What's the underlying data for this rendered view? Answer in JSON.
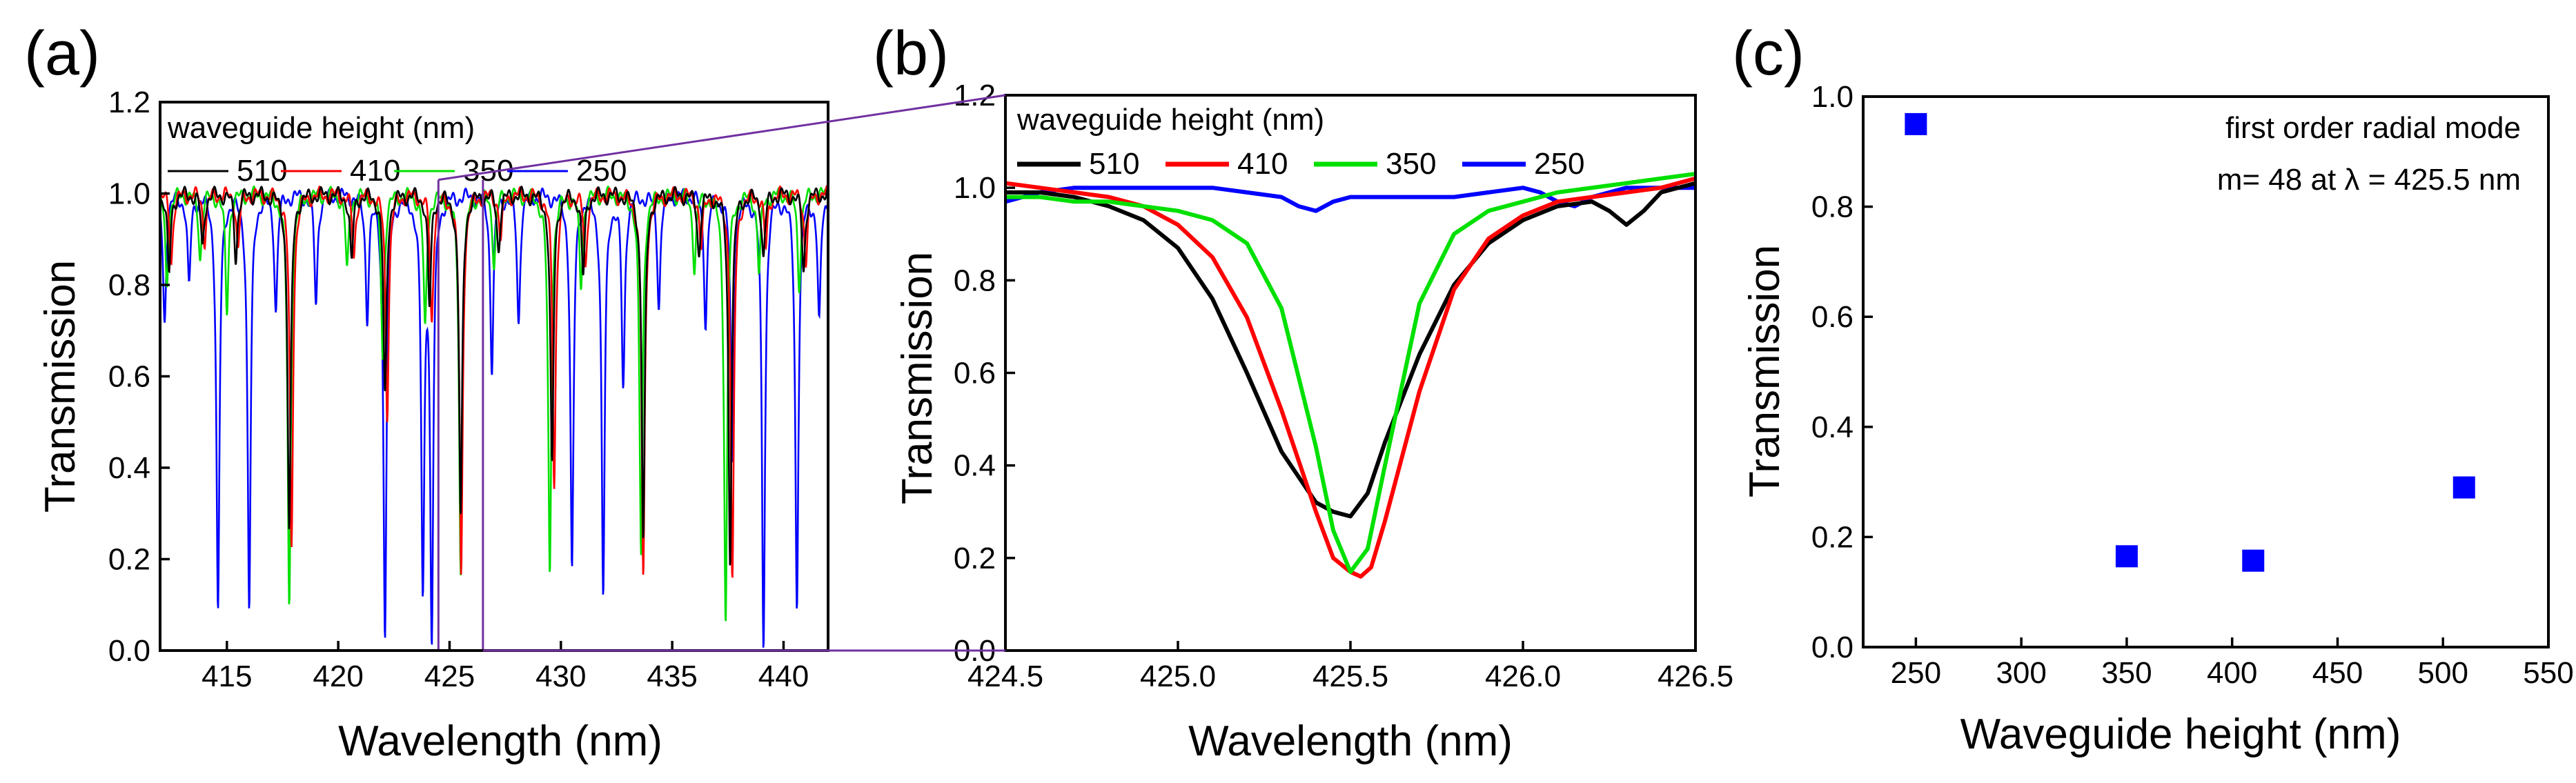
{
  "colors": {
    "510": "#000000",
    "410": "#ff0000",
    "350": "#00e000",
    "250": "#0000ff",
    "connector": "#7030a0",
    "marker": "#0000ff"
  },
  "chart_data": [
    {
      "panel_label": "(a)",
      "type": "line",
      "xlabel": "Wavelength (nm)",
      "ylabel": "Transmission",
      "xlim": [
        412,
        442
      ],
      "ylim": [
        0,
        1.2
      ],
      "xticks": [
        "415",
        "420",
        "425",
        "430",
        "435",
        "440"
      ],
      "yticks": [
        "0.0",
        "0.2",
        "0.4",
        "0.6",
        "0.8",
        "1.0",
        "1.2"
      ],
      "legend_title": "waveguide height (nm)",
      "legend_placement": "top-left",
      "zoom_window": [
        424.5,
        426.5
      ],
      "series": [
        {
          "name": "510",
          "baseline": 1.0,
          "dips": [
            [
              412.4,
              0.82
            ],
            [
              413.9,
              0.88
            ],
            [
              415.4,
              0.86
            ],
            [
              417.8,
              0.26
            ],
            [
              420.6,
              0.85
            ],
            [
              422.1,
              0.55
            ],
            [
              424.1,
              0.75
            ],
            [
              425.5,
              0.29
            ],
            [
              427.2,
              0.88
            ],
            [
              429.6,
              0.4
            ],
            [
              431.0,
              0.82
            ],
            [
              433.7,
              0.24
            ],
            [
              436.2,
              0.87
            ],
            [
              437.6,
              0.2
            ],
            [
              439.1,
              0.86
            ],
            [
              440.9,
              0.83
            ]
          ]
        },
        {
          "name": "410",
          "baseline": 1.0,
          "dips": [
            [
              412.5,
              0.85
            ],
            [
              414.0,
              0.9
            ],
            [
              415.5,
              0.88
            ],
            [
              417.9,
              0.22
            ],
            [
              420.7,
              0.86
            ],
            [
              422.2,
              0.52
            ],
            [
              424.2,
              0.72
            ],
            [
              425.52,
              0.16
            ],
            [
              427.3,
              0.9
            ],
            [
              429.7,
              0.36
            ],
            [
              431.1,
              0.84
            ],
            [
              433.7,
              0.15
            ],
            [
              436.3,
              0.88
            ],
            [
              437.7,
              0.14
            ],
            [
              439.2,
              0.88
            ],
            [
              441.0,
              0.85
            ]
          ]
        },
        {
          "name": "350",
          "baseline": 1.0,
          "dips": [
            [
              412.3,
              0.8
            ],
            [
              413.8,
              0.86
            ],
            [
              415.0,
              0.74
            ],
            [
              417.8,
              0.09
            ],
            [
              420.4,
              0.83
            ],
            [
              422.0,
              0.64
            ],
            [
              423.9,
              0.7
            ],
            [
              425.5,
              0.17
            ],
            [
              427.0,
              0.85
            ],
            [
              429.5,
              0.16
            ],
            [
              430.9,
              0.8
            ],
            [
              433.6,
              0.21
            ],
            [
              436.0,
              0.84
            ],
            [
              437.4,
              0.06
            ],
            [
              438.9,
              0.83
            ],
            [
              440.7,
              0.8
            ]
          ]
        },
        {
          "name": "250",
          "baseline": 1.0,
          "dips": [
            [
              412.2,
              0.72
            ],
            [
              413.3,
              0.8
            ],
            [
              414.6,
              0.08
            ],
            [
              416.0,
              0.09
            ],
            [
              417.2,
              0.75
            ],
            [
              419.0,
              0.76
            ],
            [
              421.3,
              0.74
            ],
            [
              422.1,
              0.04
            ],
            [
              423.8,
              0.15
            ],
            [
              424.2,
              0.05
            ],
            [
              426.9,
              0.62
            ],
            [
              428.1,
              0.72
            ],
            [
              430.5,
              0.17
            ],
            [
              431.9,
              0.12
            ],
            [
              432.8,
              0.58
            ],
            [
              434.4,
              0.76
            ],
            [
              436.5,
              0.72
            ],
            [
              437.7,
              0.42
            ],
            [
              439.1,
              0.02
            ],
            [
              440.6,
              0.1
            ],
            [
              441.6,
              0.72
            ]
          ]
        }
      ]
    },
    {
      "panel_label": "(b)",
      "type": "line",
      "xlabel": "Wavelength (nm)",
      "ylabel": "Transmission",
      "xlim": [
        424.5,
        426.5
      ],
      "ylim": [
        0,
        1.2
      ],
      "xticks": [
        "424.5",
        "425.0",
        "425.5",
        "426.0",
        "426.5"
      ],
      "yticks": [
        "0.0",
        "0.2",
        "0.4",
        "0.6",
        "0.8",
        "1.0",
        "1.2"
      ],
      "legend_title": "waveguide height (nm)",
      "legend_placement": "top-left",
      "series": [
        {
          "name": "510",
          "x": [
            424.5,
            424.6,
            424.7,
            424.8,
            424.9,
            425.0,
            425.1,
            425.2,
            425.3,
            425.4,
            425.45,
            425.5,
            425.55,
            425.6,
            425.7,
            425.8,
            425.9,
            426.0,
            426.1,
            426.2,
            426.25,
            426.3,
            426.35,
            426.4,
            426.5
          ],
          "y": [
            0.99,
            0.99,
            0.98,
            0.96,
            0.93,
            0.87,
            0.76,
            0.6,
            0.43,
            0.32,
            0.3,
            0.29,
            0.34,
            0.45,
            0.64,
            0.79,
            0.88,
            0.93,
            0.96,
            0.97,
            0.95,
            0.92,
            0.95,
            0.99,
            1.01
          ]
        },
        {
          "name": "410",
          "x": [
            424.5,
            424.6,
            424.7,
            424.8,
            424.9,
            425.0,
            425.1,
            425.2,
            425.3,
            425.4,
            425.45,
            425.5,
            425.53,
            425.56,
            425.6,
            425.7,
            425.8,
            425.9,
            426.0,
            426.1,
            426.2,
            426.3,
            426.4,
            426.5
          ],
          "y": [
            1.01,
            1.0,
            0.99,
            0.98,
            0.96,
            0.92,
            0.85,
            0.72,
            0.52,
            0.3,
            0.2,
            0.17,
            0.16,
            0.18,
            0.28,
            0.56,
            0.78,
            0.89,
            0.94,
            0.97,
            0.98,
            0.99,
            1.0,
            1.02
          ]
        },
        {
          "name": "350",
          "x": [
            424.5,
            424.6,
            424.7,
            424.8,
            424.9,
            425.0,
            425.1,
            425.2,
            425.3,
            425.4,
            425.45,
            425.5,
            425.55,
            425.6,
            425.7,
            425.8,
            425.9,
            426.0,
            426.1,
            426.2,
            426.3,
            426.4,
            426.5
          ],
          "y": [
            0.98,
            0.98,
            0.97,
            0.97,
            0.96,
            0.95,
            0.93,
            0.88,
            0.74,
            0.44,
            0.26,
            0.17,
            0.22,
            0.4,
            0.75,
            0.9,
            0.95,
            0.97,
            0.99,
            1.0,
            1.01,
            1.02,
            1.03
          ]
        },
        {
          "name": "250",
          "x": [
            424.5,
            424.6,
            424.7,
            424.8,
            424.9,
            425.0,
            425.1,
            425.2,
            425.3,
            425.35,
            425.4,
            425.45,
            425.5,
            425.6,
            425.7,
            425.8,
            425.9,
            426.0,
            426.05,
            426.1,
            426.15,
            426.2,
            426.3,
            426.4,
            426.5
          ],
          "y": [
            0.97,
            0.99,
            1.0,
            1.0,
            1.0,
            1.0,
            1.0,
            0.99,
            0.98,
            0.96,
            0.95,
            0.97,
            0.98,
            0.98,
            0.98,
            0.98,
            0.99,
            1.0,
            0.99,
            0.97,
            0.96,
            0.98,
            1.0,
            1.0,
            1.0
          ]
        }
      ]
    },
    {
      "panel_label": "(c)",
      "type": "scatter",
      "xlabel": "Waveguide height (nm)",
      "ylabel": "Transmission",
      "xlim": [
        225,
        550
      ],
      "ylim": [
        0,
        1.0
      ],
      "xticks": [
        "250",
        "300",
        "350",
        "400",
        "450",
        "500",
        "550"
      ],
      "yticks": [
        "0.0",
        "0.2",
        "0.4",
        "0.6",
        "0.8",
        "1.0"
      ],
      "annotation": [
        "first order radial mode",
        "m= 48 at λ = 425.5 nm"
      ],
      "points": [
        {
          "x": 250,
          "y": 0.95
        },
        {
          "x": 350,
          "y": 0.165
        },
        {
          "x": 410,
          "y": 0.157
        },
        {
          "x": 510,
          "y": 0.29
        }
      ]
    }
  ]
}
